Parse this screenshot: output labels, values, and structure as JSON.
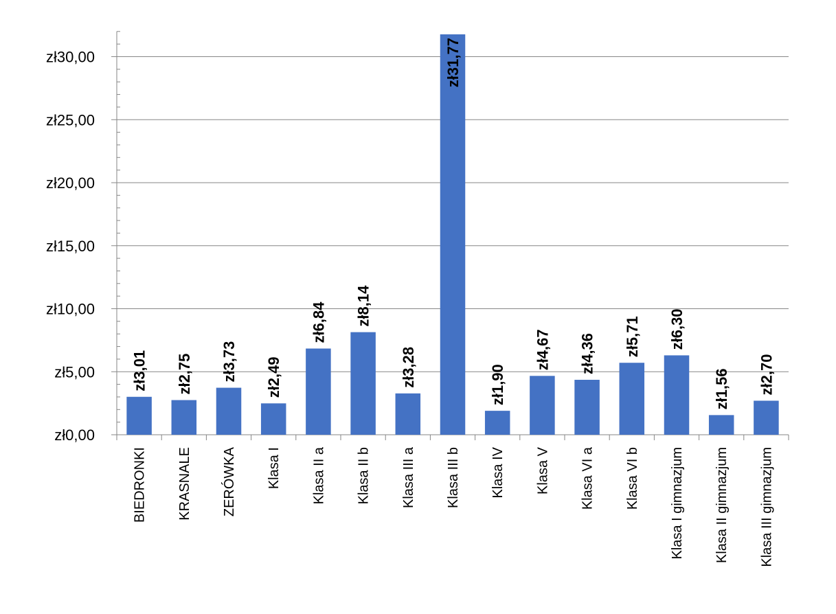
{
  "chart_data": {
    "type": "bar",
    "categories": [
      "BIEDRONKI",
      "KRASNALE",
      "ZERÓWKA",
      "Klasa I",
      "Klasa II a",
      "Klasa II b",
      "Klasa III a",
      "Klasa III b",
      "Klasa IV",
      "Klasa V",
      "Klasa VI a",
      "Klasa VI b",
      "Klasa I gimnazjum",
      "Klasa II gimnazjum",
      "Klasa III gimnazjum"
    ],
    "values": [
      3.01,
      2.75,
      3.73,
      2.49,
      6.84,
      8.14,
      3.28,
      31.77,
      1.9,
      4.67,
      4.36,
      5.71,
      6.3,
      1.56,
      2.7
    ],
    "data_labels": [
      "zł3,01",
      "zł2,75",
      "zł3,73",
      "zł2,49",
      "zł6,84",
      "zł8,14",
      "zł3,28",
      "zł31,77",
      "zł1,90",
      "zł4,67",
      "zł4,36",
      "zł5,71",
      "zł6,30",
      "zł1,56",
      "zł2,70"
    ],
    "y_ticks": [
      0,
      5,
      10,
      15,
      20,
      25,
      30
    ],
    "y_tick_labels": [
      "zł0,00",
      "zł5,00",
      "zł10,00",
      "zł15,00",
      "zł20,00",
      "zł25,00",
      "zł30,00"
    ],
    "ylim": [
      0,
      32
    ],
    "grid": true,
    "legend": "none",
    "title": "",
    "xlabel": "",
    "ylabel": "",
    "colors": {
      "bar": "#4472C4",
      "grid": "#868686",
      "text": "#000000"
    }
  }
}
